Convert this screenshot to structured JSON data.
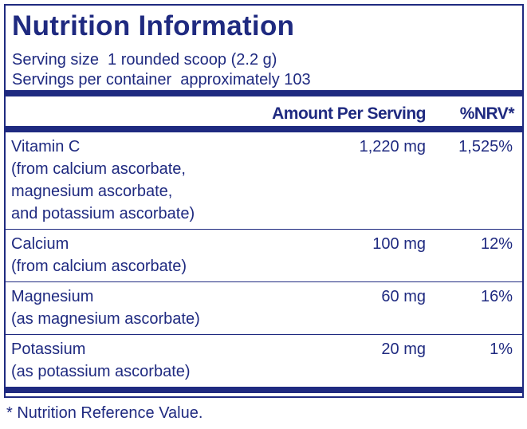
{
  "header": {
    "title": "Nutrition Information",
    "serving_size": "Serving size  1 rounded scoop (2.2 g)",
    "servings_per_container": "Servings per container  approximately 103"
  },
  "table": {
    "columns": [
      "Amount Per Serving",
      "%NRV*"
    ],
    "rows": [
      {
        "nutrient": [
          "Vitamin C",
          "(from calcium ascorbate,",
          "magnesium ascorbate,",
          "and potassium ascorbate)"
        ],
        "amount": "1,220 mg",
        "nrv": "1,525%"
      },
      {
        "nutrient": [
          "Calcium",
          "(from calcium ascorbate)"
        ],
        "amount": "100 mg",
        "nrv": "12%"
      },
      {
        "nutrient": [
          "Magnesium",
          "(as magnesium ascorbate)"
        ],
        "amount": "60 mg",
        "nrv": "16%"
      },
      {
        "nutrient": [
          "Potassium",
          "(as potassium ascorbate)"
        ],
        "amount": "20 mg",
        "nrv": "1%"
      }
    ]
  },
  "footnote": "* Nutrition Reference Value."
}
